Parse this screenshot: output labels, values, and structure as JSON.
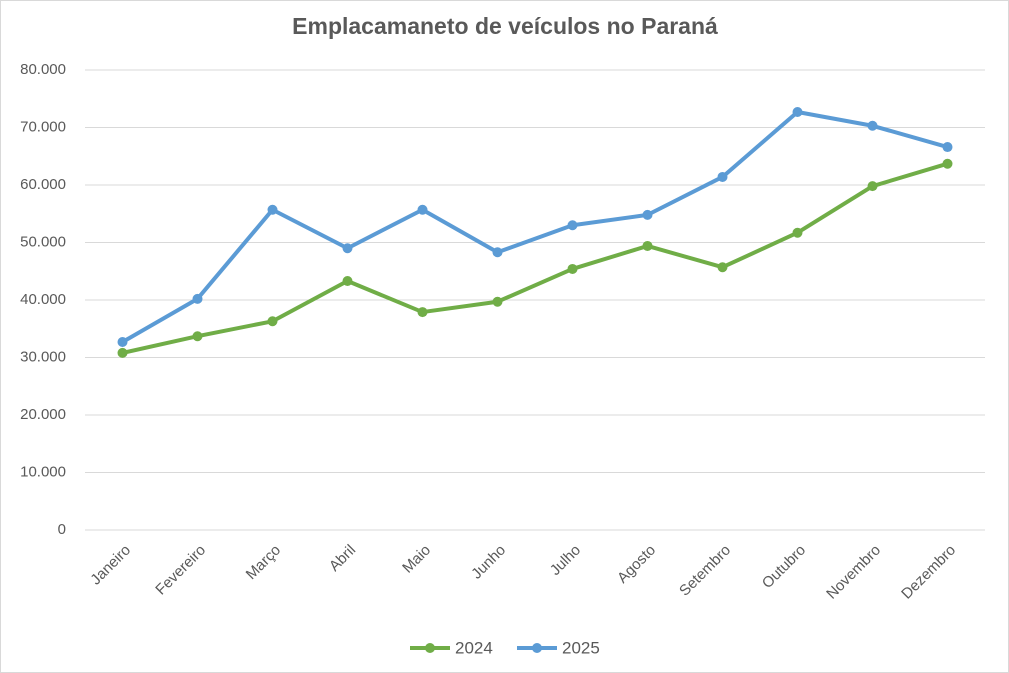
{
  "chart_data": {
    "type": "line",
    "title": "Emplacamaneto de veículos no Paraná",
    "categories": [
      "Janeiro",
      "Fevereiro",
      "Março",
      "Abril",
      "Maio",
      "Junho",
      "Julho",
      "Agosto",
      "Setembro",
      "Outubro",
      "Novembro",
      "Dezembro"
    ],
    "series": [
      {
        "name": "2024",
        "color": "#70ad47",
        "values": [
          30800,
          33700,
          36300,
          43300,
          37900,
          39700,
          45400,
          49400,
          45700,
          51700,
          59800,
          63700
        ]
      },
      {
        "name": "2025",
        "color": "#5b9bd5",
        "values": [
          32700,
          40200,
          55700,
          49000,
          55700,
          48300,
          53000,
          54800,
          61400,
          72700,
          70300,
          66600
        ]
      }
    ],
    "ylim": [
      0,
      80000
    ],
    "yticks": [
      0,
      {
        "value": 10000,
        "label": "10.000"
      },
      {
        "value": 20000,
        "label": "20.000"
      },
      {
        "value": 30000,
        "label": "30.000"
      },
      {
        "value": 40000,
        "label": "40.000"
      },
      {
        "value": 50000,
        "label": "50.000"
      },
      {
        "value": 60000,
        "label": "60.000"
      },
      {
        "value": 70000,
        "label": "70.000"
      },
      {
        "value": 80000,
        "label": "80.000"
      }
    ],
    "grid": true,
    "legend": "bottom"
  }
}
